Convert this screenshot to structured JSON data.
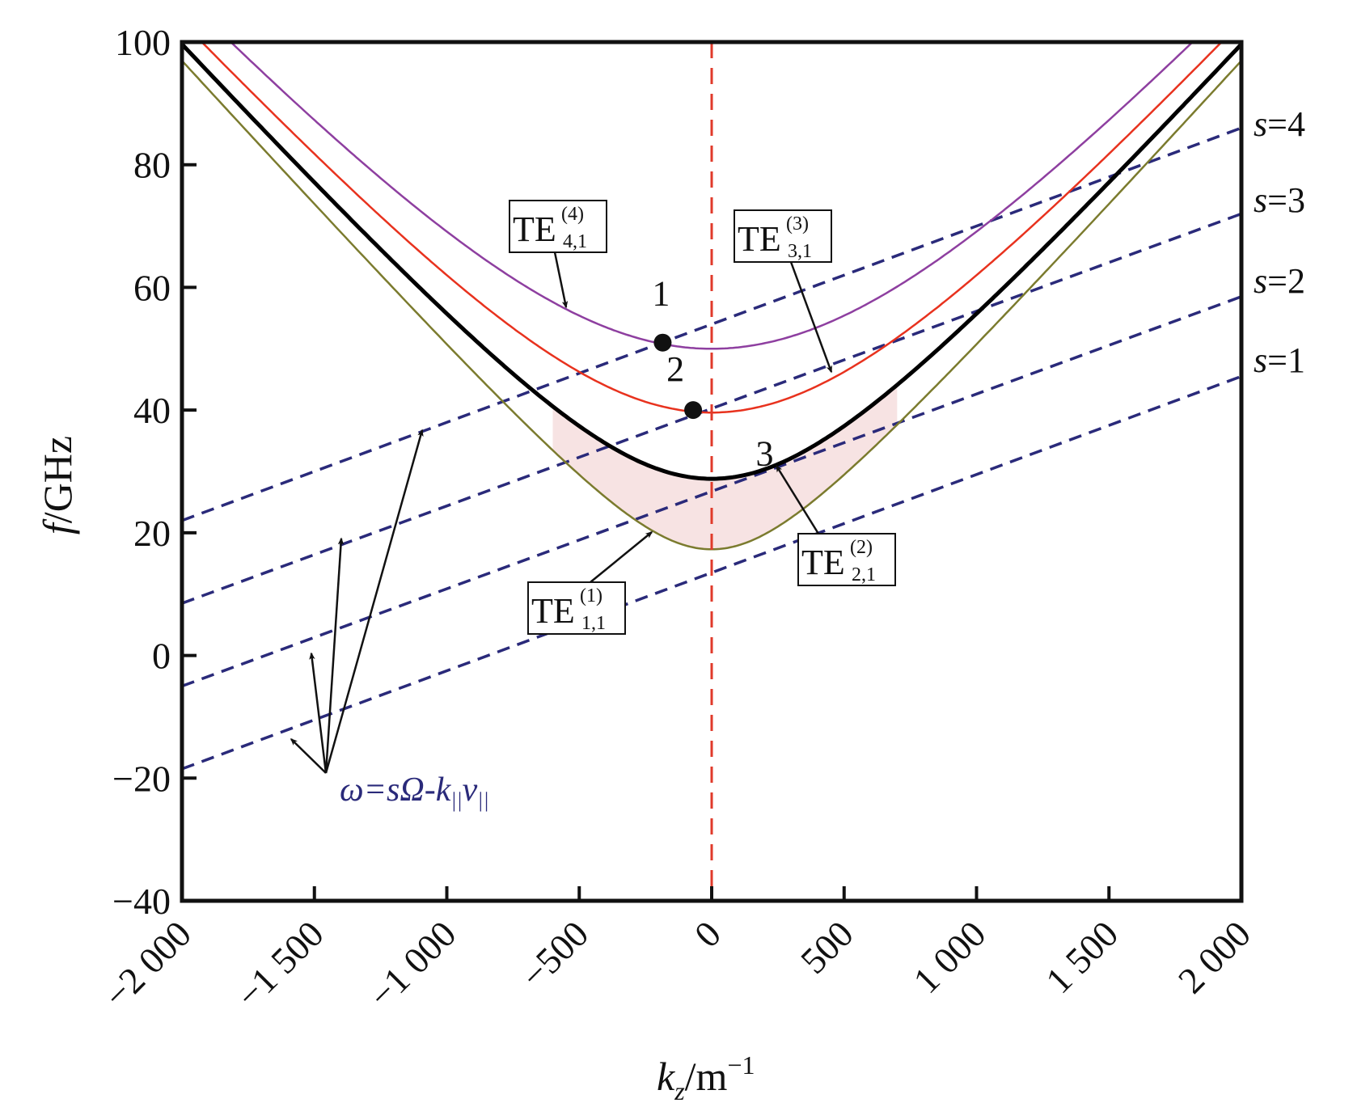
{
  "chart_data": {
    "type": "line",
    "xlabel": {
      "main": "k",
      "sub": "z",
      "unit": "/m",
      "sup": "−1"
    },
    "ylabel": {
      "main": "f",
      "unit": "/GHz"
    },
    "xlim": [
      -2000,
      2000
    ],
    "ylim": [
      -40,
      100
    ],
    "x_ticks": [
      -2000,
      -1500,
      -1000,
      -500,
      0,
      500,
      1000,
      1500,
      2000
    ],
    "x_tick_labels": [
      "−2 000",
      "−1 500",
      "−1 000",
      "−500",
      "0",
      "500",
      "1 000",
      "1 500",
      "2 000"
    ],
    "y_ticks": [
      -40,
      -20,
      0,
      20,
      40,
      60,
      80,
      100
    ],
    "y_tick_labels": [
      "−40",
      "−20",
      "0",
      "20",
      "40",
      "60",
      "80",
      "100"
    ],
    "grid": false,
    "vertical_line": {
      "x": 0,
      "color": "#e03a2a",
      "style": "dashed"
    },
    "mode_curves": [
      {
        "name": "TE(1)1,1",
        "cutoff_ghz": 17.3,
        "color": "#7b7b2e",
        "label": {
          "base": "TE",
          "sup": "(1)",
          "sub": "1,1"
        }
      },
      {
        "name": "TE(2)2,1",
        "cutoff_ghz": 28.8,
        "color": "#000000",
        "label": {
          "base": "TE",
          "sup": "(2)",
          "sub": "2,1"
        }
      },
      {
        "name": "TE(3)3,1",
        "cutoff_ghz": 39.6,
        "color": "#e8321e",
        "label": {
          "base": "TE",
          "sup": "(3)",
          "sub": "3,1"
        }
      },
      {
        "name": "TE(4)4,1",
        "cutoff_ghz": 50.0,
        "color": "#8e3fa0",
        "label": {
          "base": "TE",
          "sup": "(4)",
          "sub": "4,1"
        }
      }
    ],
    "beam_lines": [
      {
        "name": "s=1",
        "label": {
          "s": "s",
          "eq": "=1"
        },
        "y_at_xmin": -18.5,
        "y_at_xmax": 45.5
      },
      {
        "name": "s=2",
        "label": {
          "s": "s",
          "eq": "=2"
        },
        "y_at_xmin": -5.0,
        "y_at_xmax": 58.5
      },
      {
        "name": "s=3",
        "label": {
          "s": "s",
          "eq": "=3"
        },
        "y_at_xmin": 8.5,
        "y_at_xmax": 72.0
      },
      {
        "name": "s=4",
        "label": {
          "s": "s",
          "eq": "=4"
        },
        "y_at_xmin": 22.0,
        "y_at_xmax": 86.0
      }
    ],
    "beam_line_color": "#2a2a7a",
    "points": [
      {
        "label": "1",
        "x": -185,
        "y": 51
      },
      {
        "label": "2",
        "x": -70,
        "y": 40
      },
      {
        "label": "3",
        "x": 200,
        "y": 31,
        "marker": false
      }
    ],
    "beam_equation": {
      "text": "ω=sΩ-k",
      "sub": "||",
      "tail": "v",
      "tail_sub": "||"
    }
  }
}
